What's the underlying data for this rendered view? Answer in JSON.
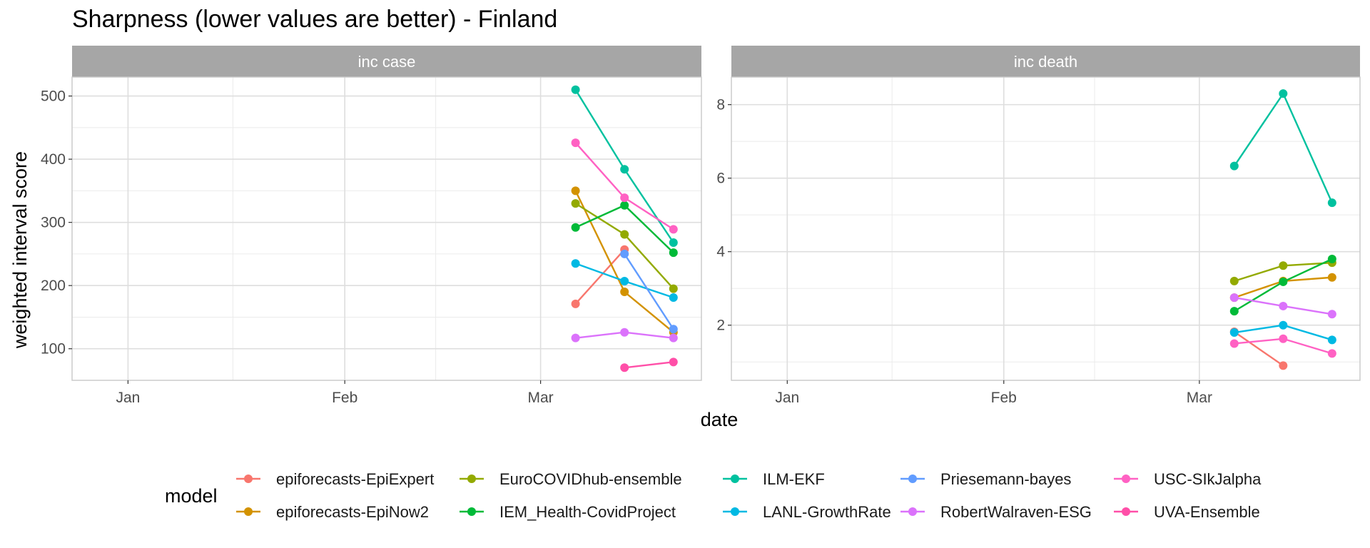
{
  "chart_data": {
    "type": "line",
    "title": "Sharpness (lower values are better) - Finland",
    "xlabel": "date",
    "ylabel": "weighted interval score",
    "x_ticks": [
      "Jan",
      "Feb",
      "Mar"
    ],
    "dates": [
      "2021-03-06",
      "2021-03-13",
      "2021-03-20"
    ],
    "legend_title": "model",
    "legend_position": "bottom",
    "grid": true,
    "models": [
      {
        "name": "epiforecasts-EpiExpert",
        "color": "#F8766D"
      },
      {
        "name": "epiforecasts-EpiNow2",
        "color": "#D39200"
      },
      {
        "name": "EuroCOVIDhub-ensemble",
        "color": "#93AA00"
      },
      {
        "name": "IEM_Health-CovidProject",
        "color": "#00BA38"
      },
      {
        "name": "ILM-EKF",
        "color": "#00C19F"
      },
      {
        "name": "LANL-GrowthRate",
        "color": "#00B9E3"
      },
      {
        "name": "Priesemann-bayes",
        "color": "#619CFF"
      },
      {
        "name": "RobertWalraven-ESG",
        "color": "#DB72FB"
      },
      {
        "name": "USC-SIkJalpha",
        "color": "#FF61C3"
      },
      {
        "name": "UVA-Ensemble",
        "color": "#FF4FA8"
      }
    ],
    "panels": [
      {
        "strip": "inc case",
        "ylim": [
          50,
          530
        ],
        "y_ticks": [
          100,
          200,
          300,
          400,
          500
        ],
        "series": [
          {
            "model": "epiforecasts-EpiExpert",
            "values": [
              171,
              257,
              null
            ]
          },
          {
            "model": "epiforecasts-EpiNow2",
            "values": [
              350,
              190,
              126
            ]
          },
          {
            "model": "EuroCOVIDhub-ensemble",
            "values": [
              330,
              281,
              195
            ]
          },
          {
            "model": "IEM_Health-CovidProject",
            "values": [
              292,
              327,
              252
            ]
          },
          {
            "model": "ILM-EKF",
            "values": [
              510,
              384,
              268
            ]
          },
          {
            "model": "LANL-GrowthRate",
            "values": [
              235,
              207,
              181
            ]
          },
          {
            "model": "Priesemann-bayes",
            "values": [
              null,
              250,
              131
            ]
          },
          {
            "model": "RobertWalraven-ESG",
            "values": [
              117,
              126,
              117
            ]
          },
          {
            "model": "USC-SIkJalpha",
            "values": [
              426,
              339,
              289
            ]
          },
          {
            "model": "UVA-Ensemble",
            "values": [
              null,
              70,
              79
            ]
          }
        ]
      },
      {
        "strip": "inc death",
        "ylim": [
          0.5,
          8.75
        ],
        "y_ticks": [
          2,
          4,
          6,
          8
        ],
        "series": [
          {
            "model": "epiforecasts-EpiExpert",
            "values": [
              1.82,
              0.9,
              null
            ]
          },
          {
            "model": "epiforecasts-EpiNow2",
            "values": [
              2.75,
              3.2,
              3.3
            ]
          },
          {
            "model": "EuroCOVIDhub-ensemble",
            "values": [
              3.2,
              3.62,
              3.7
            ]
          },
          {
            "model": "IEM_Health-CovidProject",
            "values": [
              2.38,
              3.18,
              3.8
            ]
          },
          {
            "model": "ILM-EKF",
            "values": [
              6.33,
              8.3,
              5.33
            ]
          },
          {
            "model": "LANL-GrowthRate",
            "values": [
              1.8,
              2.0,
              1.6
            ]
          },
          {
            "model": "RobertWalraven-ESG",
            "values": [
              2.75,
              2.52,
              2.3
            ]
          },
          {
            "model": "USC-SIkJalpha",
            "values": [
              1.5,
              1.63,
              1.23
            ]
          }
        ]
      }
    ]
  }
}
